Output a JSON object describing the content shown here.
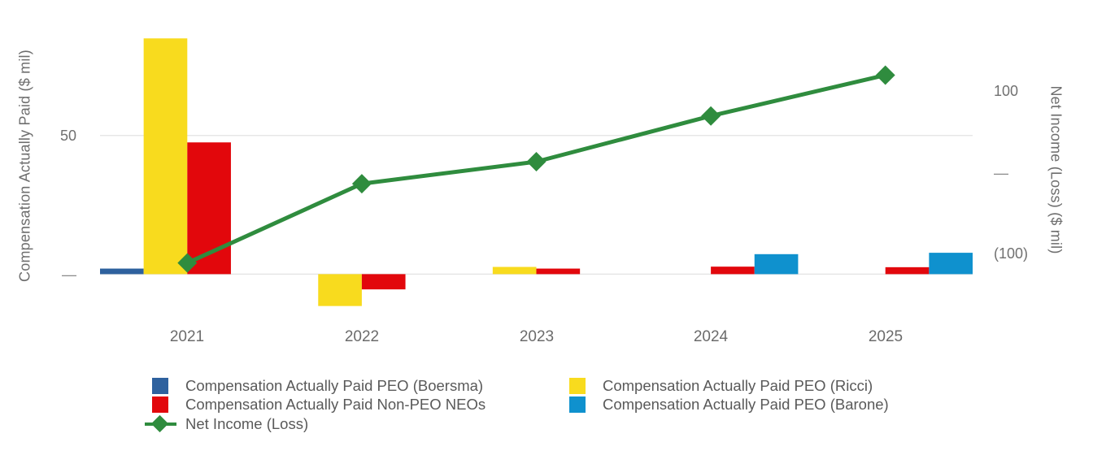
{
  "chart_data": {
    "type": "bar",
    "subtype": "grouped bars with overlaid line on secondary axis",
    "title": "",
    "categories": [
      "2021",
      "2022",
      "2023",
      "2024",
      "2025"
    ],
    "left_axis": {
      "title": "Compensation Actually Paid ($ mil)",
      "ticks": [
        {
          "value": 50,
          "label": "50"
        },
        {
          "value": 0,
          "label": "—"
        }
      ],
      "ylim": [
        -16,
        96.5
      ],
      "grid": true
    },
    "right_axis": {
      "title": "Net Income (Loss) ($ mil)",
      "ticks": [
        {
          "value": 100,
          "label": "100"
        },
        {
          "value": 0,
          "label": "—"
        },
        {
          "value": -100,
          "label": "(100)"
        }
      ],
      "ylim": [
        -178,
        204
      ],
      "grid": false
    },
    "series": [
      {
        "name": "Compensation Actually Paid PEO (Boersma)",
        "type": "bar",
        "slot": 0,
        "axis": "left",
        "color": "#2E619E",
        "values": [
          2,
          null,
          null,
          null,
          null
        ]
      },
      {
        "name": "Compensation Actually Paid PEO (Ricci)",
        "type": "bar",
        "slot": 1,
        "axis": "left",
        "color": "#F8DB1E",
        "values": [
          85,
          -11.5,
          2.6,
          null,
          null
        ]
      },
      {
        "name": "Compensation Actually Paid Non-PEO NEOs",
        "type": "bar",
        "slot": 2,
        "axis": "left",
        "color": "#E2070C",
        "values": [
          47.5,
          -5.5,
          2,
          2.7,
          2.5
        ]
      },
      {
        "name": "Compensation Actually Paid PEO (Barone)",
        "type": "bar",
        "slot": 3,
        "axis": "left",
        "color": "#0F91CE",
        "values": [
          null,
          null,
          null,
          7.2,
          7.7
        ]
      },
      {
        "name": "Net Income (Loss)",
        "type": "line",
        "axis": "right",
        "color": "#2F8C3E",
        "values": [
          -110,
          -13,
          14,
          70,
          120
        ]
      }
    ],
    "legend_position": "bottom, two columns",
    "gridline_color": "#E3E3E3"
  }
}
